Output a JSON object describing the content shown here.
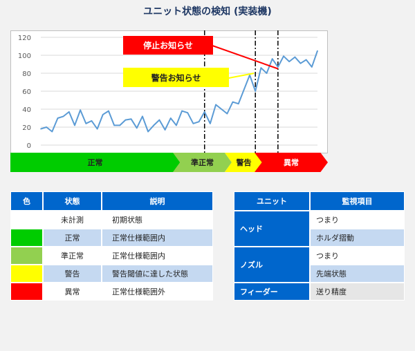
{
  "title": "ユニット状態の検知 (実装機)",
  "callouts": {
    "stop": "停止お知らせ",
    "warning": "警告お知らせ"
  },
  "bands": {
    "normal": "正常",
    "semi": "準正常",
    "warn": "警告",
    "abnormal": "異常"
  },
  "chart_data": {
    "type": "line",
    "title": "",
    "xlabel": "",
    "ylabel": "",
    "ylim": [
      0,
      120
    ],
    "yticks": [
      0,
      20,
      40,
      60,
      80,
      100,
      120
    ],
    "grid": true,
    "line_color": "#5b9bd5",
    "x": [
      1,
      2,
      3,
      4,
      5,
      6,
      7,
      8,
      9,
      10,
      11,
      12,
      13,
      14,
      15,
      16,
      17,
      18,
      19,
      20,
      21,
      22,
      23,
      24,
      25,
      26,
      27,
      28,
      29,
      30,
      31,
      32,
      33,
      34,
      35,
      36,
      37,
      38,
      39,
      40,
      41,
      42,
      43,
      44,
      45,
      46,
      47,
      48,
      49,
      50
    ],
    "values": [
      18,
      20,
      15,
      30,
      32,
      37,
      22,
      39,
      24,
      27,
      18,
      34,
      38,
      22,
      22,
      28,
      29,
      19,
      32,
      15,
      22,
      28,
      17,
      30,
      22,
      38,
      36,
      24,
      26,
      37,
      24,
      45,
      40,
      35,
      48,
      46,
      62,
      78,
      60,
      86,
      80,
      96,
      87,
      99,
      93,
      98,
      91,
      95,
      87,
      105
    ],
    "dashed_markers": [
      30,
      39,
      43
    ]
  },
  "status_table": {
    "headers": [
      "色",
      "状態",
      "説明"
    ],
    "rows": [
      {
        "color": "#ffffff",
        "state": "未計測",
        "desc": "初期状態"
      },
      {
        "color": "#00cc00",
        "state": "正常",
        "desc": "正常仕様範囲内"
      },
      {
        "color": "#92d050",
        "state": "準正常",
        "desc": "正常仕様範囲内"
      },
      {
        "color": "#ffff00",
        "state": "警告",
        "desc": "警告閾値に達した状態"
      },
      {
        "color": "#ff0000",
        "state": "異常",
        "desc": "正常仕様範囲外"
      }
    ]
  },
  "unit_table": {
    "headers": [
      "ユニット",
      "監視項目"
    ],
    "units": [
      "ヘッド",
      "ノズル",
      "フィーダー"
    ],
    "items": [
      "つまり",
      "ホルダ摺動",
      "つまり",
      "先端状態",
      "送り精度"
    ]
  }
}
